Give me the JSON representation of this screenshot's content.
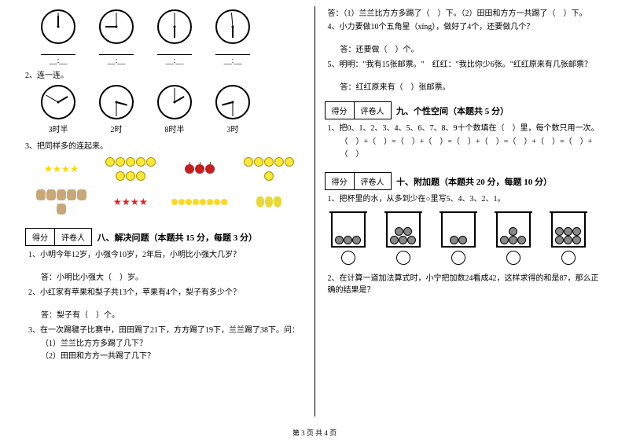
{
  "footer": "第 3 页 共 4 页",
  "left": {
    "clock_labels": [
      "3时半",
      "2时",
      "8时半",
      "3时"
    ],
    "item2": "2、连一连。",
    "item3": "3、把同样多的连起来。",
    "score": {
      "a": "得分",
      "b": "评卷人"
    },
    "section8_title": "八、解决问题（本题共 15 分，每题 3 分）",
    "q1": "1、小明今年12岁，小强今10岁，2年后，小明比小强大几岁？",
    "a1": "答：小明比小强大（　）岁。",
    "q2": "2、小红家有苹果和梨子共13个，苹果有4个，梨子有多少个？",
    "a2": "答：梨子有（　）个。",
    "q3": "3、在一次踢毽子比赛中，田田踢了21下，方方踢了19下，兰兰踢了38下。问：",
    "q3a": "（1）兰兰比方方多踢了几下？",
    "q3b": "（2）田田和方方一共踢了几下？"
  },
  "right": {
    "a3": "答：（1）兰兰比方方多踢了（　）下。（2）田田和方方一共踢了（　）下。",
    "q4": "4、小力要做10个五角星（xīng），做好了4个，还要做几个？",
    "a4": "答：还要做（　）个。",
    "q5": "5、明明：\"我有15张邮票。\"　红红：\"我比你少6张。\"红红原来有几张邮票？",
    "a5": "答：红红原来有（　）张邮票。",
    "score": {
      "a": "得分",
      "b": "评卷人"
    },
    "section9_title": "九、个性空间（本题共 5 分）",
    "q9_1": "1、把0、1、2、3、4、5、6、7、8、9十个数填在（　）里，每个数只用一次。",
    "q9_1b": "（　）+（　）=（　）+（　）=（　）+（　）=（　）+（　）=（　）+（　）",
    "section10_title": "十、附加题（本题共 20 分，每题 10 分）",
    "q10_1": "1、把杯里的水，从多到少在○里写5、4、3、2、1。",
    "beaker_balls": [
      3,
      5,
      2,
      4,
      6
    ],
    "q10_2": "2、在计算一道加法算式时，小宁把加数24看成42，这样求得的和是87，那么正确的结果是？"
  }
}
